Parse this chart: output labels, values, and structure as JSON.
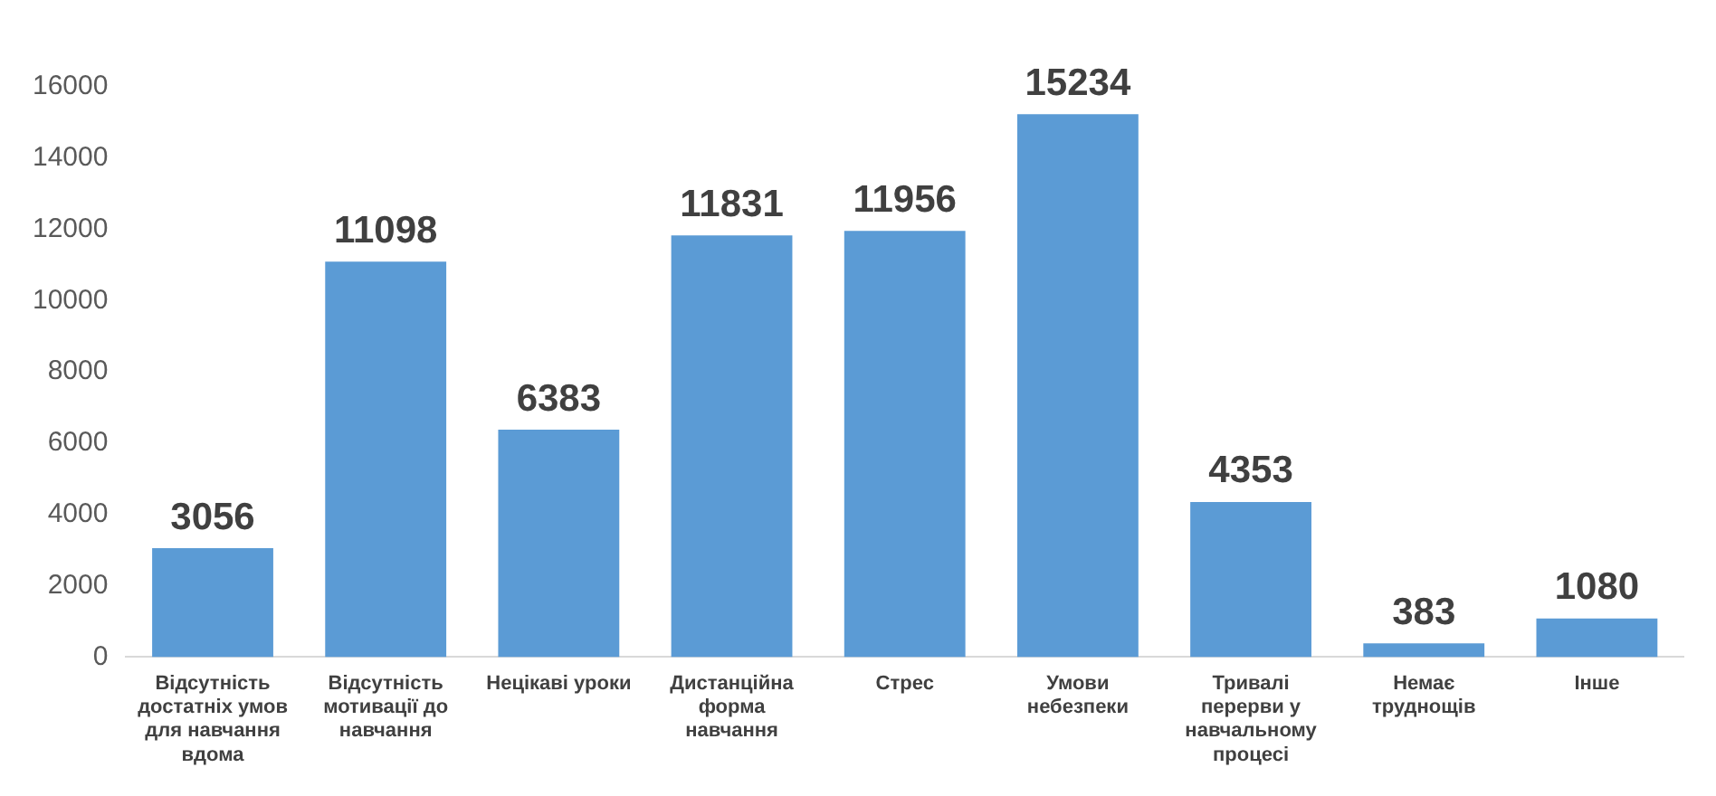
{
  "chart_data": {
    "type": "bar",
    "categories": [
      "Відсутність достатніх умов для навчання вдома",
      "Відсутність мотивації до навчання",
      "Нецікаві уроки",
      "Дистанційна форма навчання",
      "Стрес",
      "Умови небезпеки",
      "Тривалі перерви у навчальному процесі",
      "Немає труднощів",
      "Інше"
    ],
    "values": [
      3056,
      11098,
      6383,
      11831,
      11956,
      15234,
      4353,
      383,
      1080
    ],
    "color": "#5b9bd5",
    "ylim": [
      0,
      16000
    ],
    "yticks": [
      0,
      2000,
      4000,
      6000,
      8000,
      10000,
      12000,
      14000,
      16000
    ],
    "grid": false,
    "data_labels": true,
    "legend": false
  }
}
